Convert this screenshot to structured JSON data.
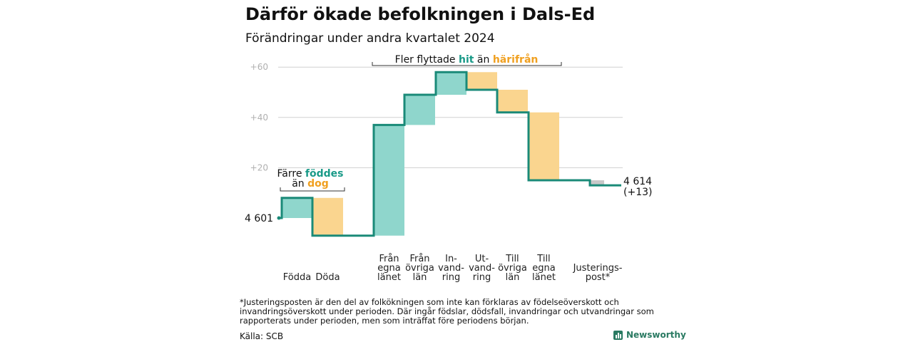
{
  "title": "Därför ökade befolkningen i Dals-Ed",
  "subtitle": "Förändringar under andra kvartalet 2024",
  "footnote": "*Justeringsposten är den del av folkökningen som inte kan förklaras av födelseöverskott och invandringsöverskott under perioden. Där ingår födslar, dödsfall, invandringar och utvandringar som rapporterats under perioden, men som inträffat före periodens början.",
  "source": "Källa: SCB",
  "brand": "Newsworthy",
  "colors": {
    "increase": "#8fd6cc",
    "decrease": "#fad58f",
    "adjustment": "#c8c8c8",
    "line": "#1a8a78",
    "teal_text": "#1a9a88",
    "orange_text": "#f0a020"
  },
  "annotations": {
    "births_deaths": {
      "line1_a": "Färre ",
      "line1_b": "föddes",
      "line2_a": "än ",
      "line2_b": "dog"
    },
    "migration": {
      "a": "Fler flyttade ",
      "b": "hit",
      "c": " än ",
      "d": "härifrån"
    }
  },
  "chart_data": {
    "type": "waterfall",
    "start_label": "4 601",
    "end_label": [
      "4 614",
      "(+13)"
    ],
    "y_ticks": [
      "+60",
      "+40",
      "+20"
    ],
    "y_tick_values": [
      60,
      40,
      20
    ],
    "ylim": [
      -8,
      62
    ],
    "grid": true,
    "start_value": 0,
    "end_value": 13,
    "steps": [
      {
        "label": [
          "Födda"
        ],
        "change": 8,
        "kind": "increase"
      },
      {
        "label": [
          "Döda"
        ],
        "change": -15,
        "kind": "decrease"
      },
      {
        "label": [
          "Från",
          "egna",
          "länet"
        ],
        "change": 44,
        "kind": "increase"
      },
      {
        "label": [
          "Från",
          "övriga",
          "län"
        ],
        "change": 12,
        "kind": "increase"
      },
      {
        "label": [
          "In-",
          "vand-",
          "ring"
        ],
        "change": 9,
        "kind": "increase"
      },
      {
        "label": [
          "Ut-",
          "vand-",
          "ring"
        ],
        "change": -7,
        "kind": "decrease"
      },
      {
        "label": [
          "Till",
          "övriga",
          "län"
        ],
        "change": -9,
        "kind": "decrease"
      },
      {
        "label": [
          "Till",
          "egna",
          "länet"
        ],
        "change": -27,
        "kind": "decrease"
      },
      {
        "label": [
          "Justerings-",
          "post*"
        ],
        "change": -2,
        "kind": "adjustment"
      }
    ]
  }
}
